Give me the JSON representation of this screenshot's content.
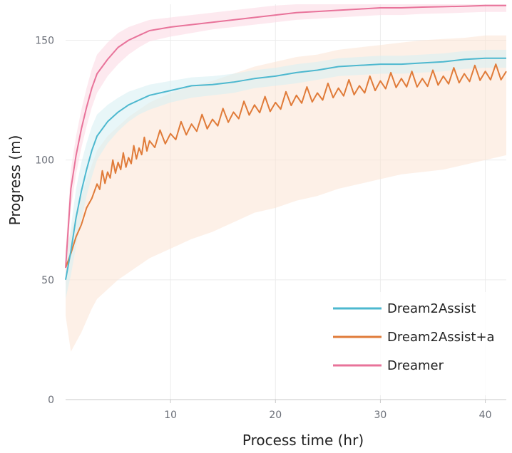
{
  "chart_data": {
    "type": "line",
    "title": "",
    "xlabel": "Process time (hr)",
    "ylabel": "Progress (m)",
    "xlim": [
      0,
      42
    ],
    "ylim": [
      0,
      165
    ],
    "x_ticks": [
      "10",
      "20",
      "30",
      "40"
    ],
    "y_ticks": [
      "0",
      "50",
      "100",
      "150"
    ],
    "grid": true,
    "legend_position": "bottom-right",
    "x": [
      0,
      0.5,
      1,
      1.5,
      2,
      2.5,
      3,
      4,
      5,
      6,
      7,
      8,
      10,
      12,
      14,
      16,
      18,
      20,
      22,
      24,
      26,
      28,
      30,
      32,
      34,
      36,
      38,
      40,
      42
    ],
    "series": [
      {
        "name": "Dream2Assist",
        "color": "#4db8cf",
        "band_color": "#d8f0f4",
        "values": [
          50,
          62,
          76,
          87,
          96,
          104,
          110,
          116,
          120,
          123,
          125,
          127,
          129,
          131,
          131.5,
          132.5,
          134,
          135,
          136.5,
          137.5,
          139,
          139.5,
          140,
          140,
          140.5,
          141,
          142,
          142.5,
          142.5
        ],
        "lower": [
          42,
          52,
          64,
          75,
          85,
          93,
          100,
          107,
          112,
          116,
          119,
          121,
          124,
          126,
          127,
          128,
          130,
          131,
          132,
          133.5,
          135,
          135.5,
          136,
          136,
          136.5,
          137,
          138,
          138.5,
          138.5
        ],
        "upper": [
          58,
          72,
          88,
          99,
          107,
          114,
          119,
          123,
          126,
          128.5,
          130,
          131.5,
          133,
          134.5,
          135,
          136,
          137.5,
          138.5,
          140,
          141,
          142.5,
          143,
          143.5,
          143.5,
          144,
          144.5,
          145.5,
          146,
          146
        ]
      },
      {
        "name": "Dream2Assist+a",
        "color": "#e07b39",
        "band_color": "#fbe3d4",
        "values": [
          55,
          61,
          68,
          73,
          80,
          84,
          90,
          95,
          99,
          101,
          105,
          108,
          111,
          115,
          117,
          120,
          123,
          124,
          127,
          128,
          130,
          131,
          133,
          134,
          134,
          135,
          136,
          137,
          137
        ],
        "lower": [
          35,
          20,
          24,
          28,
          33,
          38,
          42,
          46,
          50,
          53,
          56,
          59,
          63,
          67,
          70,
          74,
          78,
          80,
          83,
          85,
          88,
          90,
          92,
          94,
          95,
          96,
          98,
          100,
          102
        ],
        "upper": [
          62,
          70,
          78,
          85,
          92,
          98,
          104,
          110,
          114,
          118,
          121,
          124,
          128,
          131,
          133,
          136,
          139,
          141,
          143,
          144,
          146,
          147,
          148,
          149,
          150,
          150.5,
          151,
          152,
          152
        ]
      },
      {
        "name": "Dreamer",
        "color": "#e8739a",
        "band_color": "#fbdbe5",
        "values": [
          55,
          88,
          102,
          113,
          122,
          130,
          136,
          142,
          147,
          150,
          152,
          154,
          155.5,
          156.5,
          157.5,
          158.5,
          159.5,
          160.5,
          161.5,
          162,
          162.5,
          163,
          163.5,
          163.5,
          163.8,
          164,
          164.2,
          164.5,
          164.5
        ],
        "lower": [
          48,
          80,
          94,
          105,
          114,
          122,
          128,
          135,
          140,
          144,
          147,
          149.5,
          151.5,
          153,
          154.5,
          155.5,
          156.5,
          157.5,
          158.5,
          159,
          159.5,
          160,
          160.5,
          160.5,
          161,
          161.2,
          161.5,
          161.8,
          161.8
        ],
        "upper": [
          62,
          96,
          110,
          121,
          130,
          138,
          144,
          149,
          153,
          155.5,
          157,
          158.5,
          159.5,
          160.5,
          161.5,
          162.5,
          163.5,
          164.5,
          165,
          165,
          165,
          165,
          165,
          165,
          165,
          165,
          165,
          165,
          165
        ]
      }
    ]
  }
}
